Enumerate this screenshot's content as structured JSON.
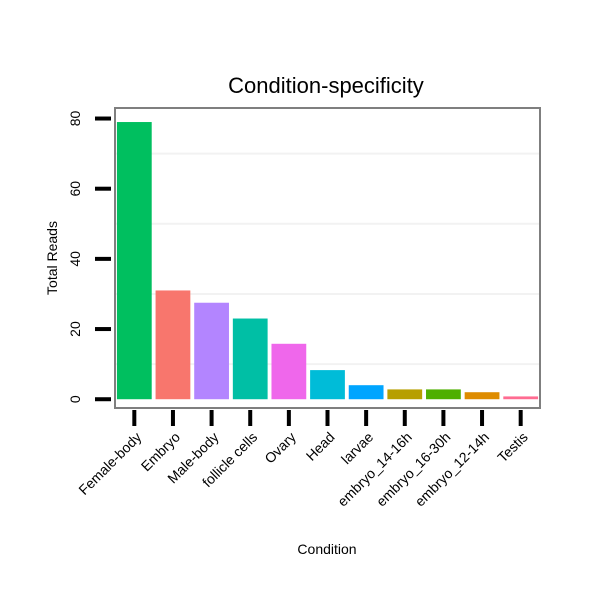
{
  "chart_data": {
    "type": "bar",
    "title": "Condition-specificity",
    "xlabel": "Condition",
    "ylabel": "Total Reads",
    "categories": [
      "Female-body",
      "Embryo",
      "Male-body",
      "follicle cells",
      "Ovary",
      "Head",
      "larvae",
      "embryo_14-16h",
      "embryo_16-30h",
      "embryo_12-14h",
      "Testis"
    ],
    "values": [
      79,
      31,
      27.5,
      23,
      15.8,
      8.3,
      4,
      2.8,
      2.8,
      2,
      0.8
    ],
    "colors": [
      "#00BF5F",
      "#F8766D",
      "#B385FF",
      "#00BFA5",
      "#EF67EB",
      "#00BCD8",
      "#00A5FF",
      "#B79F00",
      "#4FAF00",
      "#DE8C00",
      "#FF6C91"
    ],
    "yticks": [
      0,
      20,
      40,
      60,
      80
    ],
    "ylim": [
      -2.5,
      83
    ],
    "grid": true,
    "legend": "none"
  }
}
